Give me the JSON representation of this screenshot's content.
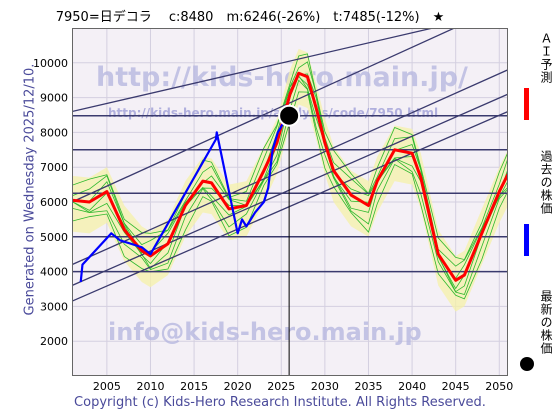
{
  "header": {
    "title": "7950=日デコラ　 c:8480　m:6246(-26%)　t:7485(-12%)　★"
  },
  "side": {
    "generated": "Generated on Wednesday 2025/12/10."
  },
  "footer": {
    "copyright": "Copyright (c) Kids-Hero Research Institute. All Rights Reserved."
  },
  "watermarks": {
    "top": "http://kids-hero.main.jp/",
    "middle": "http://kids-hero.main.jp/analysis/code/7950.html",
    "bottom": "info@kids-hero.main.jp"
  },
  "legend": [
    {
      "label": "ＡＩ予測",
      "color": "#ff0000"
    },
    {
      "label": "過去の株価",
      "color": "#0000ff"
    },
    {
      "label": "最新の株価",
      "color": "#000000"
    }
  ],
  "chart_data": {
    "type": "line",
    "title": "7950=日デコラ　 c:8480　m:6246(-26%)　t:7485(-12%)　★",
    "xlim": [
      2001,
      2051
    ],
    "ylim": [
      1000,
      11000
    ],
    "xticks": [
      2005,
      2010,
      2015,
      2020,
      2025,
      2030,
      2035,
      2040,
      2045,
      2050
    ],
    "yticks": [
      2000,
      3000,
      4000,
      5000,
      6000,
      7000,
      8000,
      9000,
      10000
    ],
    "grid": true,
    "current_marker": {
      "x": 2025.9,
      "y": 8480
    },
    "horizontal_levels": [
      4000,
      5000,
      6250,
      7500,
      8480
    ],
    "series": [
      {
        "name": "ＡＩ予測",
        "color": "#ff0000",
        "points": [
          [
            2001,
            6050
          ],
          [
            2003,
            6000
          ],
          [
            2005,
            6300
          ],
          [
            2007,
            5200
          ],
          [
            2009,
            4600
          ],
          [
            2010,
            4450
          ],
          [
            2012,
            4800
          ],
          [
            2014,
            5900
          ],
          [
            2016,
            6600
          ],
          [
            2017,
            6550
          ],
          [
            2019,
            5800
          ],
          [
            2021,
            5900
          ],
          [
            2023,
            6900
          ],
          [
            2024.5,
            7700
          ],
          [
            2026,
            9100
          ],
          [
            2027,
            9700
          ],
          [
            2028,
            9600
          ],
          [
            2029,
            8700
          ],
          [
            2030,
            7700
          ],
          [
            2031,
            6900
          ],
          [
            2033,
            6200
          ],
          [
            2035,
            5900
          ],
          [
            2036,
            6600
          ],
          [
            2038,
            7500
          ],
          [
            2040,
            7400
          ],
          [
            2041,
            6700
          ],
          [
            2043,
            4500
          ],
          [
            2045,
            3750
          ],
          [
            2046,
            3900
          ],
          [
            2048,
            5100
          ],
          [
            2050,
            6300
          ],
          [
            2051,
            6800
          ]
        ]
      },
      {
        "name": "過去の株価",
        "color": "#0000ff",
        "points": [
          [
            2002,
            3700
          ],
          [
            2002.2,
            4200
          ],
          [
            2005.5,
            5100
          ],
          [
            2006.5,
            4900
          ],
          [
            2009,
            4700
          ],
          [
            2010,
            4500
          ],
          [
            2017.5,
            7800
          ],
          [
            2017.6,
            8000
          ],
          [
            2019.5,
            5700
          ],
          [
            2020,
            5100
          ],
          [
            2020.5,
            5500
          ],
          [
            2021,
            5300
          ],
          [
            2022,
            5700
          ],
          [
            2023,
            6000
          ],
          [
            2023.5,
            6400
          ],
          [
            2024,
            7500
          ],
          [
            2024.6,
            8000
          ],
          [
            2025.3,
            8300
          ],
          [
            2025.9,
            8480
          ]
        ]
      }
    ]
  }
}
